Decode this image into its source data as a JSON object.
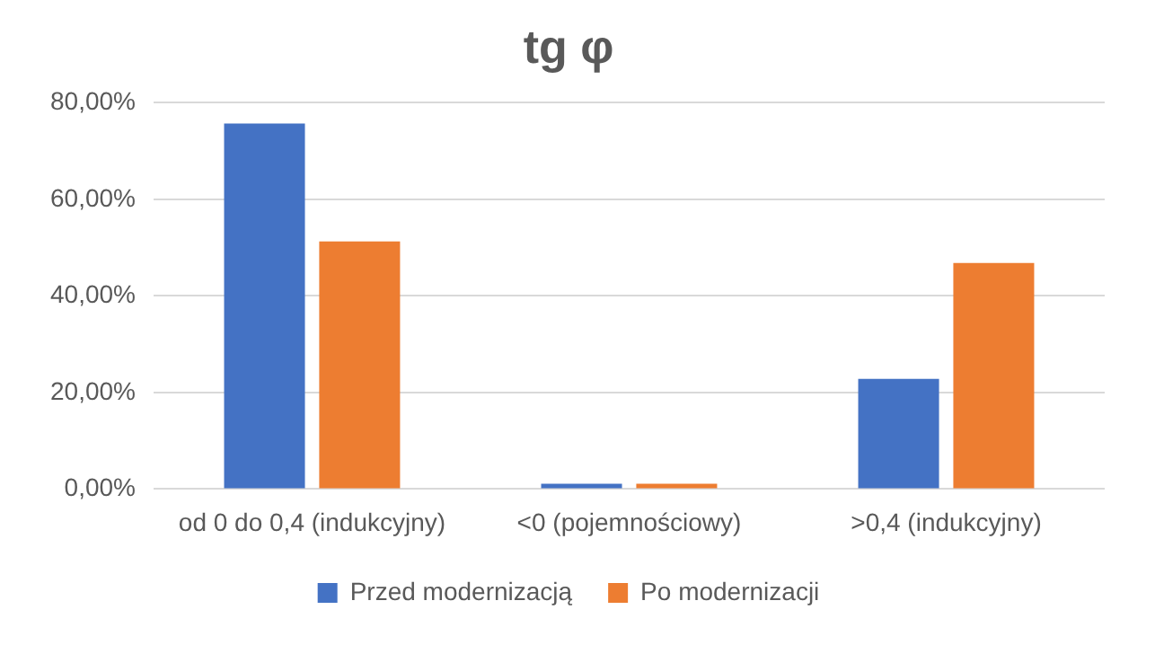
{
  "chart_data": {
    "type": "bar",
    "title": "tg φ",
    "categories": [
      "od 0 do 0,4 (indukcyjny)",
      "<0 (pojemnościowy)",
      ">0,4 (indukcyjny)"
    ],
    "series": [
      {
        "name": "Przed modernizacją",
        "color": "#4472c4",
        "values": [
          75.7,
          1.1,
          22.8
        ]
      },
      {
        "name": "Po modernizacji",
        "color": "#ed7d31",
        "values": [
          51.3,
          1.1,
          46.8
        ]
      }
    ],
    "ylim": [
      0,
      80
    ],
    "yticks": [
      {
        "value": 0,
        "label": "0,00%"
      },
      {
        "value": 20,
        "label": "20,00%"
      },
      {
        "value": 40,
        "label": "40,00%"
      },
      {
        "value": 60,
        "label": "60,00%"
      },
      {
        "value": 80,
        "label": "80,00%"
      }
    ],
    "grid": "y",
    "legend": "bottom"
  }
}
